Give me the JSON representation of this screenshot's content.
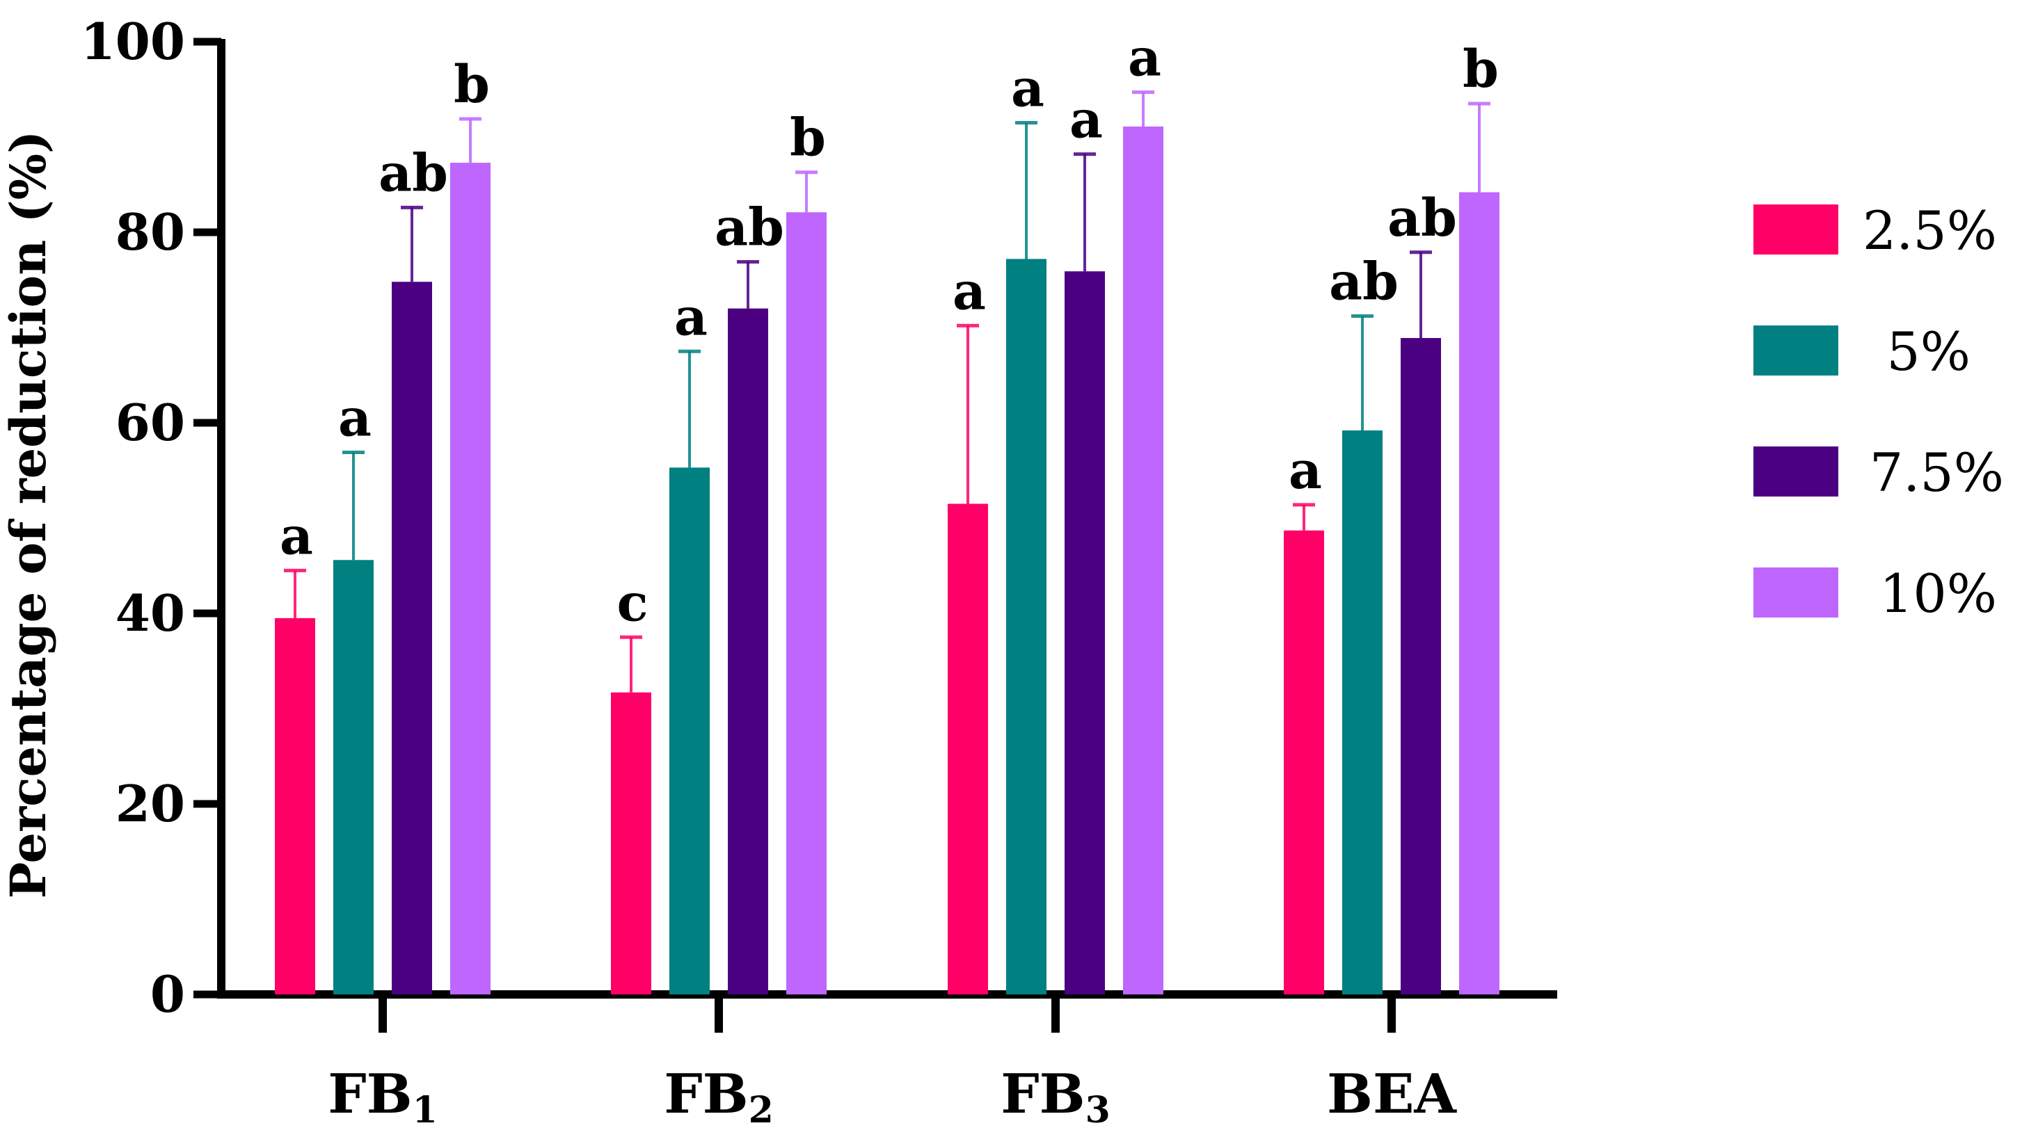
{
  "chart_data": {
    "type": "bar",
    "title": "",
    "xlabel": "",
    "ylabel": "Percentage of reduction (%)",
    "ylim": [
      0,
      100
    ],
    "yticks": [
      0,
      20,
      40,
      60,
      80,
      100
    ],
    "grid": false,
    "legend_position": "right",
    "categories": [
      {
        "main": "FB",
        "sub": "1"
      },
      {
        "main": "FB",
        "sub": "2"
      },
      {
        "main": "FB",
        "sub": "3"
      },
      {
        "main": "BEA",
        "sub": ""
      }
    ],
    "series": [
      {
        "name": "2.5%",
        "color": "#ff0066",
        "values": [
          39.5,
          31.7,
          51.5,
          48.7
        ],
        "errors": [
          5.0,
          5.8,
          18.7,
          2.7
        ],
        "labels": [
          "a",
          "c",
          "a",
          "a"
        ]
      },
      {
        "name": "5%",
        "color": "#008080",
        "values": [
          45.6,
          55.3,
          77.2,
          59.2
        ],
        "errors": [
          11.3,
          12.2,
          14.3,
          12.0
        ],
        "labels": [
          "a",
          "a",
          "a",
          "ab"
        ]
      },
      {
        "name": "7.5%",
        "color": "#4b0082",
        "values": [
          74.8,
          72.0,
          75.9,
          68.9
        ],
        "errors": [
          7.8,
          4.9,
          12.3,
          9.0
        ],
        "labels": [
          "ab",
          "ab",
          "a",
          "ab"
        ]
      },
      {
        "name": "10%",
        "color": "#bf66ff",
        "values": [
          87.3,
          82.1,
          91.1,
          84.2
        ],
        "errors": [
          4.6,
          4.2,
          3.6,
          9.3
        ],
        "labels": [
          "b",
          "b",
          "a",
          "b"
        ]
      }
    ]
  }
}
